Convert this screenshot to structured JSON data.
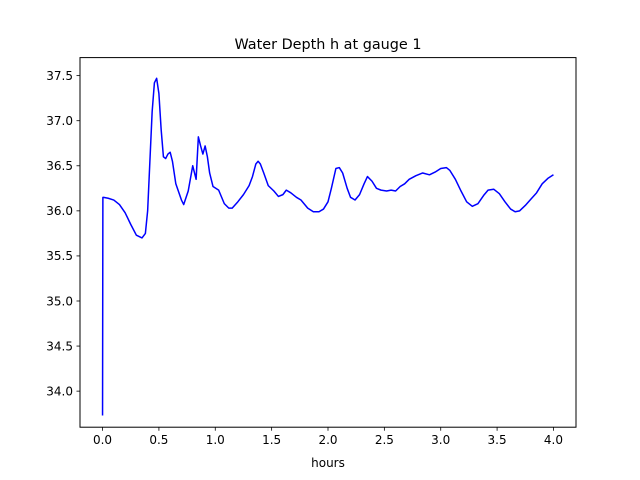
{
  "chart_data": {
    "type": "line",
    "title": "Water Depth h at gauge 1",
    "xlabel": "hours",
    "ylabel": "",
    "xlim": [
      -0.2,
      4.2
    ],
    "ylim": [
      33.6,
      37.7
    ],
    "xticks": [
      0.0,
      0.5,
      1.0,
      1.5,
      2.0,
      2.5,
      3.0,
      3.5,
      4.0
    ],
    "xtick_labels": [
      "0.0",
      "0.5",
      "1.0",
      "1.5",
      "2.0",
      "2.5",
      "3.0",
      "3.5",
      "4.0"
    ],
    "yticks": [
      34.0,
      34.5,
      35.0,
      35.5,
      36.0,
      36.5,
      37.0,
      37.5
    ],
    "ytick_labels": [
      "34.0",
      "34.5",
      "35.0",
      "35.5",
      "36.0",
      "36.5",
      "37.0",
      "37.5"
    ],
    "grid": false,
    "series": [
      {
        "color": "#0000ff",
        "x": [
          0.0,
          0.003,
          0.01,
          0.05,
          0.1,
          0.15,
          0.2,
          0.25,
          0.3,
          0.35,
          0.38,
          0.4,
          0.42,
          0.44,
          0.46,
          0.48,
          0.5,
          0.52,
          0.54,
          0.56,
          0.58,
          0.6,
          0.62,
          0.65,
          0.7,
          0.72,
          0.76,
          0.8,
          0.83,
          0.85,
          0.87,
          0.89,
          0.91,
          0.93,
          0.95,
          0.98,
          1.03,
          1.08,
          1.12,
          1.15,
          1.2,
          1.25,
          1.3,
          1.33,
          1.36,
          1.38,
          1.4,
          1.43,
          1.47,
          1.52,
          1.56,
          1.6,
          1.63,
          1.67,
          1.72,
          1.76,
          1.82,
          1.87,
          1.92,
          1.96,
          2.0,
          2.03,
          2.07,
          2.1,
          2.13,
          2.17,
          2.2,
          2.24,
          2.28,
          2.32,
          2.35,
          2.39,
          2.43,
          2.47,
          2.52,
          2.56,
          2.6,
          2.64,
          2.68,
          2.72,
          2.78,
          2.84,
          2.9,
          2.95,
          3.0,
          3.05,
          3.08,
          3.13,
          3.18,
          3.23,
          3.28,
          3.33,
          3.38,
          3.42,
          3.47,
          3.52,
          3.57,
          3.62,
          3.66,
          3.7,
          3.75,
          3.8,
          3.85,
          3.9,
          3.95,
          4.0
        ],
        "y": [
          33.73,
          36.15,
          36.15,
          36.14,
          36.12,
          36.07,
          35.98,
          35.85,
          35.73,
          35.7,
          35.75,
          36.0,
          36.55,
          37.1,
          37.42,
          37.47,
          37.3,
          36.9,
          36.6,
          36.58,
          36.63,
          36.65,
          36.55,
          36.3,
          36.12,
          36.07,
          36.22,
          36.5,
          36.35,
          36.82,
          36.72,
          36.63,
          36.72,
          36.6,
          36.42,
          36.27,
          36.23,
          36.08,
          36.03,
          36.03,
          36.1,
          36.18,
          36.28,
          36.38,
          36.52,
          36.55,
          36.52,
          36.42,
          36.28,
          36.22,
          36.16,
          36.18,
          36.23,
          36.2,
          36.15,
          36.12,
          36.03,
          35.99,
          35.99,
          36.02,
          36.1,
          36.25,
          36.47,
          36.48,
          36.42,
          36.25,
          36.15,
          36.12,
          36.18,
          36.3,
          36.38,
          36.33,
          36.25,
          36.23,
          36.22,
          36.23,
          36.22,
          36.27,
          36.3,
          36.35,
          36.39,
          36.42,
          36.4,
          36.43,
          36.47,
          36.48,
          36.45,
          36.35,
          36.22,
          36.1,
          36.05,
          36.08,
          36.17,
          36.23,
          36.24,
          36.19,
          36.1,
          36.02,
          35.99,
          36.0,
          36.06,
          36.13,
          36.2,
          36.3,
          36.36,
          36.4
        ]
      }
    ]
  }
}
